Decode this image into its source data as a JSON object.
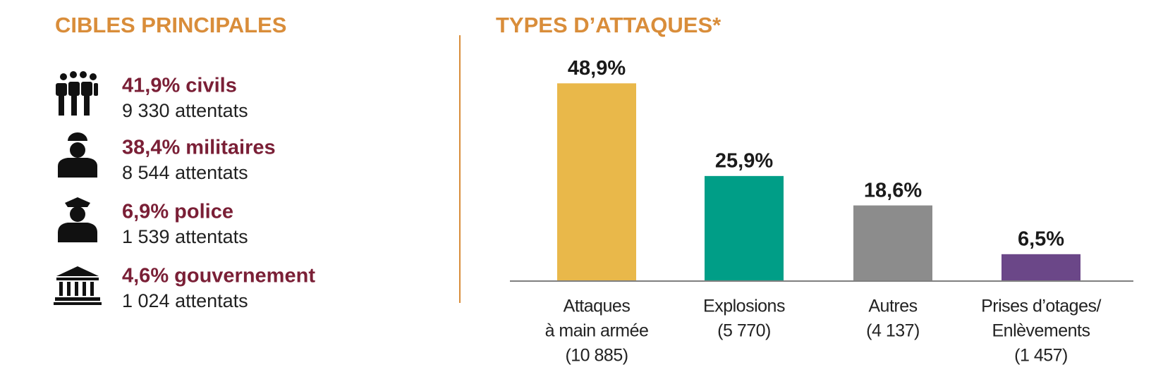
{
  "left_panel": {
    "title": "CIBLES PRINCIPALES",
    "items": [
      {
        "headline": "41,9% civils",
        "count": "9 330 attentats"
      },
      {
        "headline": "38,4% militaires",
        "count": "8 544 attentats"
      },
      {
        "headline": "6,9% police",
        "count": "1 539 attentats"
      },
      {
        "headline": "4,6% gouvernement",
        "count": "1 024 attentats"
      }
    ]
  },
  "chart_data": {
    "type": "bar",
    "title": "TYPES D’ATTAQUES*",
    "categories": [
      [
        "Attaques",
        "à main armée",
        "(10 885)"
      ],
      [
        "Explosions",
        "(5 770)"
      ],
      [
        "Autres",
        "(4 137)"
      ],
      [
        "Prises d’otages/",
        "Enlèvements",
        "(1 457)"
      ]
    ],
    "values": [
      48.9,
      25.9,
      18.6,
      6.5
    ],
    "value_labels": [
      "48,9%",
      "25,9%",
      "18,6%",
      "6,5%"
    ],
    "colors": [
      "#e9b84a",
      "#009e87",
      "#8c8c8c",
      "#6b4788"
    ]
  }
}
